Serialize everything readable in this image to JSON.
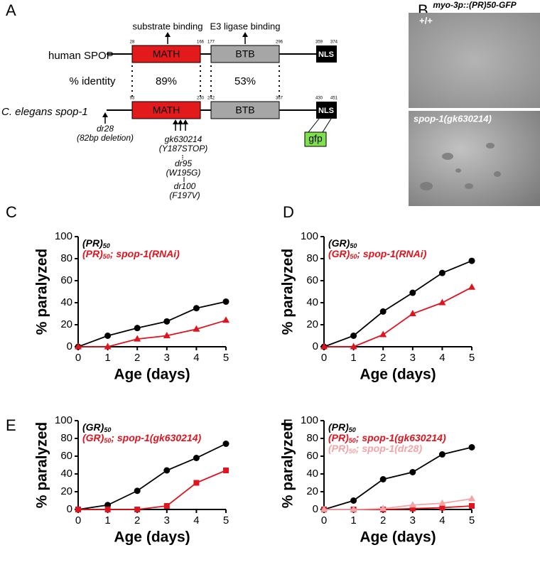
{
  "panel_labels": [
    "A",
    "B",
    "C",
    "D",
    "E",
    "F"
  ],
  "diagram": {
    "substrate_label": "substrate binding",
    "e3_label": "E3 ligase binding",
    "identity_label": "% identity",
    "identity_math": "89%",
    "identity_btb": "53%",
    "human": {
      "name": "human SPOP",
      "math": "MATH",
      "btb": "BTB",
      "nls": "NLS",
      "residues": [
        "28",
        "166",
        "177",
        "296",
        "359",
        "374"
      ]
    },
    "worm": {
      "name": "C. elegans spop-1",
      "math": "MATH",
      "btb": "BTB",
      "nls": "NLS",
      "residues": [
        "93",
        "230",
        "242",
        "367",
        "430",
        "451"
      ]
    },
    "gfp": "gfp",
    "alleles": [
      {
        "name": "dr28",
        "detail": "(82bp deletion)"
      },
      {
        "name": "gk630214",
        "detail": "(Y187STOP)"
      },
      {
        "name": "dr95",
        "detail": "(W195G)"
      },
      {
        "name": "dr100",
        "detail": "(F197V)"
      }
    ]
  },
  "image": {
    "title": "myo-3p::(PR)50-GFP",
    "labels": [
      "+/+",
      "spop-1(gk630214)"
    ]
  },
  "chart_data": [
    {
      "type": "line",
      "x_label": "Age (days)",
      "y_label": "% paralyzed",
      "x": [
        0,
        1,
        2,
        3,
        4,
        5
      ],
      "xlim": [
        0,
        5
      ],
      "xticks": [
        0,
        1,
        2,
        3,
        4,
        5
      ],
      "ylim": [
        0,
        100
      ],
      "yticks": [
        0,
        20,
        40,
        60,
        80,
        100
      ],
      "series": [
        {
          "name": "(PR)50",
          "color": "#000000",
          "marker": "circle",
          "values": [
            0,
            10,
            17,
            23,
            35,
            41
          ]
        },
        {
          "name": "(PR)50; spop-1(RNAi)",
          "color": "#e0141e",
          "marker": "triangle",
          "values": [
            0,
            0,
            7,
            10,
            16,
            24
          ]
        }
      ]
    },
    {
      "type": "line",
      "x_label": "Age (days)",
      "y_label": "% paralyzed",
      "x": [
        0,
        1,
        2,
        3,
        4,
        5
      ],
      "xlim": [
        0,
        5
      ],
      "xticks": [
        0,
        1,
        2,
        3,
        4,
        5
      ],
      "ylim": [
        0,
        100
      ],
      "yticks": [
        0,
        20,
        40,
        60,
        80,
        100
      ],
      "series": [
        {
          "name": "(GR)50",
          "color": "#000000",
          "marker": "circle",
          "values": [
            0,
            10,
            32,
            49,
            67,
            78
          ]
        },
        {
          "name": "(GR)50; spop-1(RNAi)",
          "color": "#e0141e",
          "marker": "triangle",
          "values": [
            0,
            0,
            11,
            30,
            40,
            54
          ]
        }
      ]
    },
    {
      "type": "line",
      "x_label": "Age (days)",
      "y_label": "% paralyzed",
      "x": [
        0,
        1,
        2,
        3,
        4,
        5
      ],
      "xlim": [
        0,
        5
      ],
      "xticks": [
        0,
        1,
        2,
        3,
        4,
        5
      ],
      "ylim": [
        0,
        100
      ],
      "yticks": [
        0,
        20,
        40,
        60,
        80,
        100
      ],
      "series": [
        {
          "name": "(GR)50",
          "color": "#000000",
          "marker": "circle",
          "values": [
            0,
            5,
            21,
            44,
            58,
            74
          ]
        },
        {
          "name": "(GR)50; spop-1(gk630214)",
          "color": "#e0141e",
          "marker": "square",
          "values": [
            0,
            0,
            0,
            4,
            30,
            44
          ]
        }
      ]
    },
    {
      "type": "line",
      "x_label": "Age (days)",
      "y_label": "% paralyzed",
      "x": [
        0,
        1,
        2,
        3,
        4,
        5
      ],
      "xlim": [
        0,
        5
      ],
      "xticks": [
        0,
        1,
        2,
        3,
        4,
        5
      ],
      "ylim": [
        0,
        100
      ],
      "yticks": [
        0,
        20,
        40,
        60,
        80,
        100
      ],
      "series": [
        {
          "name": "(PR)50",
          "color": "#000000",
          "marker": "circle",
          "values": [
            0,
            10,
            34,
            42,
            62,
            70
          ]
        },
        {
          "name": "(PR)50; spop-1(gk630214)",
          "color": "#e0141e",
          "marker": "square",
          "values": [
            0,
            0,
            0,
            1,
            2,
            4
          ]
        },
        {
          "name": "(PR)50; spop-1(dr28)",
          "color": "#f4a3a6",
          "marker": "triangle",
          "values": [
            0,
            0,
            1,
            5,
            7,
            12
          ]
        }
      ]
    }
  ]
}
